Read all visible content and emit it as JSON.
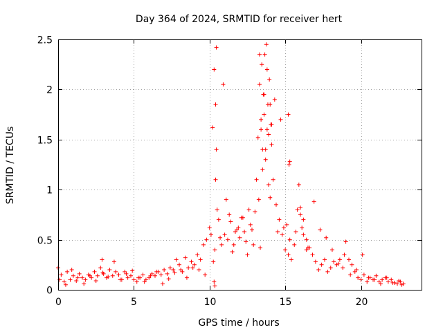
{
  "chart_data": {
    "type": "scatter",
    "title": "Day 364 of 2024, SRMTID for receiver hert",
    "xlabel": "GPS time / hours",
    "ylabel": "SRMTID / TECUs",
    "xlim": [
      0,
      24
    ],
    "ylim": [
      0,
      2.5
    ],
    "x_ticks": [
      0,
      5,
      10,
      15,
      20
    ],
    "x_tick_labels": [
      "0",
      "5",
      "10",
      "15",
      "20"
    ],
    "y_ticks": [
      0,
      0.5,
      1,
      1.5,
      2,
      2.5
    ],
    "y_tick_labels": [
      "0",
      "0.5",
      "1",
      "1.5",
      "2",
      "2.5"
    ],
    "grid": true,
    "marker": "+",
    "color": "#ff0000",
    "series": [
      {
        "name": "SRMTID",
        "x": [
          0.0,
          0.2,
          0.4,
          0.6,
          0.8,
          1.0,
          1.2,
          1.4,
          1.6,
          1.8,
          2.0,
          2.2,
          2.4,
          2.6,
          2.8,
          2.9,
          3.0,
          3.2,
          3.4,
          3.6,
          3.8,
          4.0,
          4.2,
          4.4,
          4.6,
          4.8,
          5.0,
          5.2,
          5.4,
          5.6,
          5.8,
          6.0,
          6.2,
          6.4,
          6.6,
          6.8,
          7.0,
          7.2,
          7.4,
          7.6,
          7.8,
          8.0,
          8.2,
          8.4,
          8.6,
          8.8,
          9.0,
          9.2,
          9.4,
          9.6,
          9.8,
          10.0,
          10.1,
          10.2,
          10.3,
          10.4,
          10.5,
          10.6,
          10.7,
          10.8,
          11.0,
          11.2,
          11.4,
          11.6,
          11.8,
          12.0,
          12.2,
          12.4,
          12.6,
          12.8,
          13.0,
          13.1,
          13.2,
          13.3,
          13.4,
          13.5,
          13.6,
          13.7,
          13.8,
          13.9,
          14.0,
          14.1,
          14.2,
          14.4,
          14.6,
          14.8,
          15.0,
          15.2,
          15.4,
          15.6,
          15.8,
          16.0,
          16.2,
          16.4,
          16.6,
          16.8,
          17.0,
          17.2,
          17.4,
          17.6,
          17.8,
          18.0,
          18.2,
          18.4,
          18.6,
          18.8,
          19.0,
          19.2,
          19.4,
          19.6,
          19.8,
          20.0,
          20.2,
          20.4,
          20.6,
          20.8,
          21.0,
          21.2,
          21.4,
          21.6,
          21.8,
          22.0,
          22.2,
          22.4,
          22.6,
          22.8,
          0.1,
          0.5,
          0.9,
          1.3,
          1.7,
          2.1,
          2.5,
          2.95,
          3.3,
          3.7,
          4.1,
          4.5,
          4.9,
          5.3,
          5.7,
          6.1,
          6.5,
          6.9,
          7.3,
          7.7,
          8.1,
          8.5,
          8.9,
          9.3,
          9.7,
          10.25,
          10.35,
          10.45,
          10.9,
          11.1,
          11.5,
          11.9,
          12.3,
          12.7,
          13.25,
          13.35,
          13.45,
          13.55,
          13.65,
          13.75,
          13.85,
          13.95,
          14.05,
          14.3,
          14.7,
          15.1,
          15.3,
          15.7,
          15.9,
          16.1,
          16.5,
          16.9,
          17.3,
          17.7,
          18.1,
          18.5,
          18.9,
          19.3,
          19.7,
          20.1,
          20.5,
          20.9,
          21.3,
          21.7,
          22.1,
          22.5,
          22.7,
          10.3,
          10.35,
          10.4,
          10.45,
          13.3,
          13.4,
          13.5,
          13.6,
          13.7,
          13.8,
          13.9,
          14.0,
          14.1,
          15.2,
          15.25,
          15.3,
          16.0,
          16.2,
          16.4,
          11.3,
          11.7,
          12.1,
          12.5,
          12.9,
          14.5,
          14.9
        ],
        "y": [
          0.22,
          0.15,
          0.08,
          0.18,
          0.1,
          0.14,
          0.09,
          0.16,
          0.12,
          0.1,
          0.15,
          0.12,
          0.18,
          0.14,
          0.22,
          0.3,
          0.16,
          0.12,
          0.2,
          0.14,
          0.18,
          0.15,
          0.1,
          0.18,
          0.12,
          0.14,
          0.1,
          0.08,
          0.12,
          0.15,
          0.1,
          0.12,
          0.16,
          0.14,
          0.18,
          0.15,
          0.2,
          0.16,
          0.22,
          0.2,
          0.3,
          0.25,
          0.18,
          0.32,
          0.22,
          0.28,
          0.25,
          0.35,
          0.3,
          0.45,
          0.5,
          0.62,
          0.55,
          1.62,
          2.2,
          1.1,
          0.8,
          0.7,
          0.52,
          0.45,
          0.55,
          0.5,
          0.68,
          0.45,
          0.6,
          0.52,
          0.72,
          0.48,
          0.8,
          0.6,
          0.78,
          1.1,
          1.52,
          2.05,
          1.7,
          1.4,
          1.75,
          1.3,
          1.6,
          1.55,
          1.85,
          1.45,
          1.1,
          0.85,
          0.7,
          0.55,
          0.4,
          0.35,
          0.3,
          0.45,
          0.8,
          0.75,
          0.55,
          0.5,
          0.42,
          0.35,
          0.28,
          0.2,
          0.25,
          0.3,
          0.18,
          0.22,
          0.28,
          0.25,
          0.3,
          0.22,
          0.48,
          0.3,
          0.25,
          0.18,
          0.12,
          0.1,
          0.15,
          0.08,
          0.12,
          0.1,
          0.14,
          0.08,
          0.1,
          0.12,
          0.08,
          0.1,
          0.07,
          0.06,
          0.08,
          0.06,
          0.1,
          0.05,
          0.2,
          0.12,
          0.06,
          0.14,
          0.09,
          0.17,
          0.13,
          0.28,
          0.1,
          0.16,
          0.19,
          0.12,
          0.08,
          0.14,
          0.18,
          0.06,
          0.11,
          0.17,
          0.2,
          0.12,
          0.22,
          0.2,
          0.15,
          0.28,
          0.4,
          2.42,
          2.05,
          0.9,
          0.38,
          0.62,
          0.58,
          0.65,
          0.9,
          0.42,
          2.25,
          1.95,
          2.35,
          2.45,
          1.85,
          2.1,
          1.65,
          1.9,
          1.7,
          0.65,
          0.5,
          0.58,
          1.05,
          0.62,
          0.42,
          0.88,
          0.6,
          0.52,
          0.4,
          0.26,
          0.35,
          0.15,
          0.2,
          0.35,
          0.12,
          0.1,
          0.06,
          0.12,
          0.07,
          0.09,
          0.05,
          0.08,
          0.04,
          1.85,
          1.4,
          2.35,
          1.6,
          1.2,
          1.95,
          1.4,
          2.2,
          1.05,
          0.92,
          1.65,
          1.75,
          1.25,
          1.28,
          0.82,
          0.7,
          0.4,
          0.75,
          0.58,
          0.72,
          0.35,
          0.45,
          0.58,
          0.62
        ]
      }
    ]
  }
}
